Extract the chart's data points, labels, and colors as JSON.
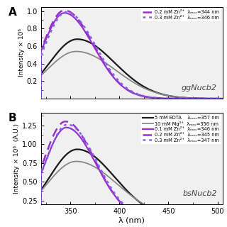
{
  "panel_A": {
    "label": "A",
    "watermark": "ggNucb2",
    "xlim": [
      320,
      505
    ],
    "ylim": [
      0.0,
      1.05
    ],
    "yticks": [
      0.2,
      0.4,
      0.6,
      0.8,
      1.0
    ],
    "xticks": [
      350,
      400,
      450,
      500
    ],
    "series": [
      {
        "color": "#1a1a1a",
        "linestyle": "solid",
        "linewidth": 1.6,
        "peak": 357,
        "amplitude": 0.68,
        "wl": 28,
        "wr": 38
      },
      {
        "color": "#888888",
        "linestyle": "solid",
        "linewidth": 1.3,
        "peak": 356,
        "amplitude": 0.54,
        "wl": 30,
        "wr": 40
      },
      {
        "color": "#9932CC",
        "linestyle": "solid",
        "linewidth": 1.6,
        "peak": 344,
        "amplitude": 0.98,
        "wl": 22,
        "wr": 30
      },
      {
        "color": "#9932CC",
        "linestyle": "dashed",
        "linewidth": 1.8,
        "peak": 344,
        "amplitude": 1.01,
        "wl": 22,
        "wr": 30
      },
      {
        "color": "#7B68EE",
        "linestyle": "dotted",
        "linewidth": 1.8,
        "peak": 346,
        "amplitude": 0.99,
        "wl": 22,
        "wr": 30
      }
    ],
    "legend_labels": [
      "0.2 mM Zn²⁺  λₘₐₓ=344 nm",
      "0.3 mM Zn²⁺  λₘₐₓ=346 nm"
    ],
    "legend_styles": [
      {
        "color": "#9932CC",
        "linestyle": "dashed",
        "linewidth": 1.8
      },
      {
        "color": "#7B68EE",
        "linestyle": "dotted",
        "linewidth": 1.8
      }
    ],
    "ylabel": "Intensity × 10⁶",
    "xlabel": "λ (nm)"
  },
  "panel_B": {
    "label": "B",
    "watermark": "bsNucb2",
    "xlim": [
      320,
      505
    ],
    "ylim": [
      0.2,
      1.42
    ],
    "yticks": [
      0.25,
      0.5,
      0.75,
      1.0,
      1.25
    ],
    "xticks": [
      350,
      400,
      450,
      500
    ],
    "series": [
      {
        "color": "#1a1a1a",
        "linestyle": "solid",
        "linewidth": 1.6,
        "peak": 357,
        "amplitude": 0.93,
        "wl": 28,
        "wr": 38
      },
      {
        "color": "#888888",
        "linestyle": "solid",
        "linewidth": 1.3,
        "peak": 356,
        "amplitude": 0.77,
        "wl": 30,
        "wr": 42
      },
      {
        "color": "#9932CC",
        "linestyle": "solid",
        "linewidth": 1.6,
        "peak": 346,
        "amplitude": 1.22,
        "wl": 22,
        "wr": 30
      },
      {
        "color": "#9932CC",
        "linestyle": "dashed",
        "linewidth": 1.8,
        "peak": 345,
        "amplitude": 1.3,
        "wl": 22,
        "wr": 30
      },
      {
        "color": "#7B68EE",
        "linestyle": "dotted",
        "linewidth": 1.8,
        "peak": 347,
        "amplitude": 1.26,
        "wl": 22,
        "wr": 30
      }
    ],
    "legend_labels": [
      "5 mM EDTA    λₘₐₓ=357 nm",
      "10 mM Mg²⁺  λₘₐₓ=356 nm",
      "0.1 mM Zn²⁺  λₘₐₓ=346 nm",
      "0.2 mM Zn²⁺  λₘₐₓ=345 nm",
      "0.3 mM Zn²⁺  λₘₐₓ=347 nm"
    ],
    "legend_styles": [
      {
        "color": "#1a1a1a",
        "linestyle": "solid",
        "linewidth": 1.6
      },
      {
        "color": "#888888",
        "linestyle": "solid",
        "linewidth": 1.3
      },
      {
        "color": "#9932CC",
        "linestyle": "solid",
        "linewidth": 1.6
      },
      {
        "color": "#9932CC",
        "linestyle": "dashed",
        "linewidth": 1.8
      },
      {
        "color": "#7B68EE",
        "linestyle": "dotted",
        "linewidth": 1.8
      }
    ],
    "ylabel": "Intensity × 10⁶  (A.U.)",
    "xlabel": "λ (nm)"
  },
  "background_color": "#f0f0f0"
}
